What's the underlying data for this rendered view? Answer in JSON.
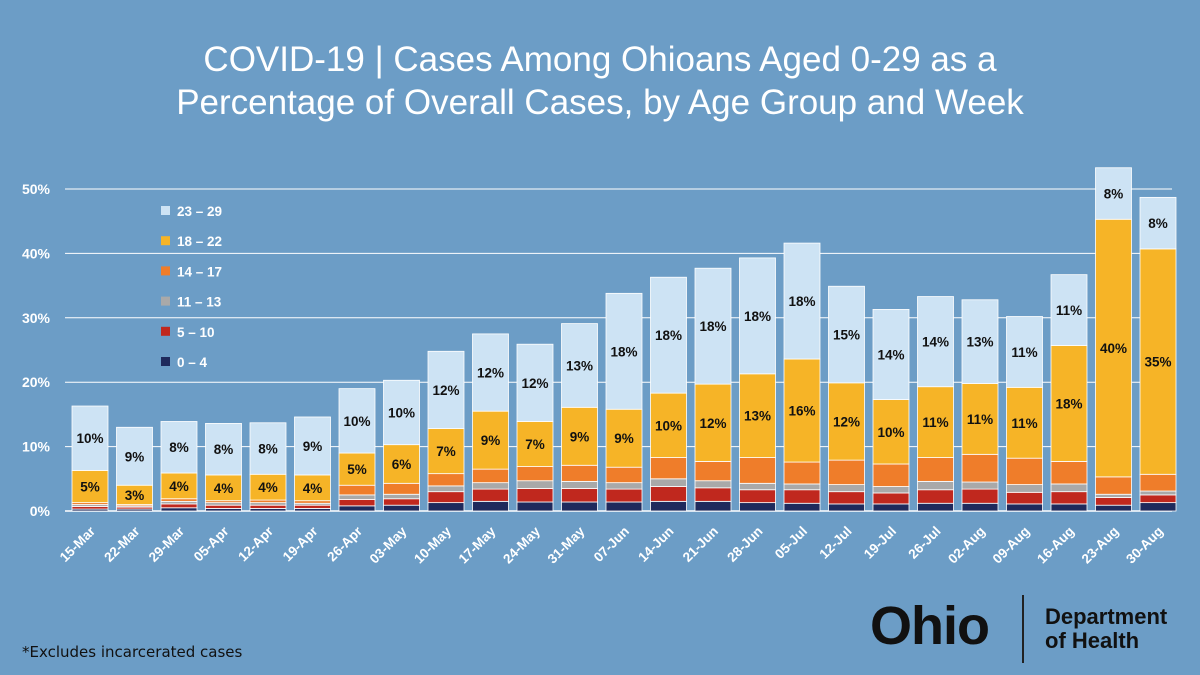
{
  "title": {
    "line1": "COVID-19 | Cases Among Ohioans Aged 0-29 as a",
    "line2": "Percentage of Overall Cases, by Age Group and Week"
  },
  "footnote": "*Excludes incarcerated cases",
  "logo": {
    "state": "Ohio",
    "dept_line1": "Department",
    "dept_line2": "of Health"
  },
  "colors": {
    "background": "#6c9dc6",
    "a0_4": "#1f2a5c",
    "a5_10": "#c0281e",
    "a11_13": "#a9a9a9",
    "a14_17": "#ef7d2a",
    "a18_22": "#f6b427",
    "a23_29": "#cde3f4"
  },
  "chart_data": {
    "type": "bar",
    "stacked": true,
    "title": "COVID-19 | Cases Among Ohioans Aged 0-29 as a Percentage of Overall Cases, by Age Group and Week",
    "xlabel": "",
    "ylabel": "",
    "ylim": [
      0,
      50
    ],
    "yticks": [
      0,
      10,
      20,
      30,
      40,
      50
    ],
    "ytick_labels": [
      "0%",
      "10%",
      "20%",
      "30%",
      "40%",
      "50%"
    ],
    "grid": true,
    "legend_position": "top-left",
    "legend_order": [
      "23 – 29",
      "18 – 22",
      "14 – 17",
      "11 – 13",
      "5 – 10",
      "0 – 4"
    ],
    "categories": [
      "15-Mar",
      "22-Mar",
      "29-Mar",
      "05-Apr",
      "12-Apr",
      "19-Apr",
      "26-Apr",
      "03-May",
      "10-May",
      "17-May",
      "24-May",
      "31-May",
      "07-Jun",
      "14-Jun",
      "21-Jun",
      "28-Jun",
      "05-Jul",
      "12-Jul",
      "19-Jul",
      "26-Jul",
      "02-Aug",
      "09-Aug",
      "16-Aug",
      "23-Aug",
      "30-Aug"
    ],
    "series": [
      {
        "name": "0 – 4",
        "color_key": "a0_4",
        "values": [
          0.3,
          0.3,
          0.5,
          0.4,
          0.4,
          0.4,
          0.8,
          0.9,
          1.3,
          1.5,
          1.4,
          1.4,
          1.4,
          1.5,
          1.5,
          1.3,
          1.2,
          1.1,
          1.1,
          1.2,
          1.2,
          1.1,
          1.1,
          0.9,
          1.3
        ]
      },
      {
        "name": "5 – 10",
        "color_key": "a5_10",
        "values": [
          0.4,
          0.3,
          0.6,
          0.5,
          0.5,
          0.5,
          1.0,
          1.0,
          1.7,
          1.9,
          2.1,
          2.1,
          2.0,
          2.3,
          2.1,
          2.0,
          2.1,
          1.9,
          1.7,
          2.1,
          2.2,
          1.8,
          1.9,
          1.2,
          1.2
        ]
      },
      {
        "name": "11 – 13",
        "color_key": "a11_13",
        "values": [
          0.3,
          0.2,
          0.4,
          0.4,
          0.4,
          0.3,
          0.7,
          0.7,
          0.9,
          1.0,
          1.2,
          1.1,
          1.0,
          1.2,
          1.1,
          1.0,
          0.9,
          1.1,
          1.0,
          1.3,
          1.1,
          1.2,
          1.2,
          0.5,
          0.6
        ]
      },
      {
        "name": "14 – 17",
        "color_key": "a14_17",
        "values": [
          0.3,
          0.2,
          0.4,
          0.3,
          0.4,
          0.4,
          1.5,
          1.7,
          1.9,
          2.1,
          2.2,
          2.5,
          2.4,
          3.3,
          3.0,
          4.0,
          3.4,
          3.8,
          3.5,
          3.7,
          4.3,
          4.1,
          3.5,
          2.7,
          2.6
        ]
      },
      {
        "name": "18 – 22",
        "color_key": "a18_22",
        "values": [
          5,
          3,
          4,
          4,
          4,
          4,
          5,
          6,
          7,
          9,
          7,
          9,
          9,
          10,
          12,
          13,
          16,
          12,
          10,
          11,
          11,
          11,
          18,
          40,
          35
        ]
      },
      {
        "name": "23 – 29",
        "color_key": "a23_29",
        "values": [
          10,
          9,
          8,
          8,
          8,
          9,
          10,
          10,
          12,
          12,
          12,
          13,
          18,
          18,
          18,
          18,
          18,
          15,
          14,
          14,
          13,
          11,
          11,
          8,
          8
        ]
      }
    ],
    "data_labels": {
      "18 – 22": [
        "5%",
        "3%",
        "4%",
        "4%",
        "4%",
        "4%",
        "5%",
        "6%",
        "7%",
        "9%",
        "7%",
        "9%",
        "9%",
        "10%",
        "12%",
        "13%",
        "16%",
        "12%",
        "10%",
        "11%",
        "11%",
        "11%",
        "18%",
        "40%",
        "35%"
      ],
      "23 – 29": [
        "10%",
        "9%",
        "8%",
        "8%",
        "8%",
        "9%",
        "10%",
        "10%",
        "12%",
        "12%",
        "12%",
        "13%",
        "18%",
        "18%",
        "18%",
        "18%",
        "18%",
        "15%",
        "14%",
        "14%",
        "13%",
        "11%",
        "11%",
        "8%",
        "8%"
      ]
    }
  }
}
